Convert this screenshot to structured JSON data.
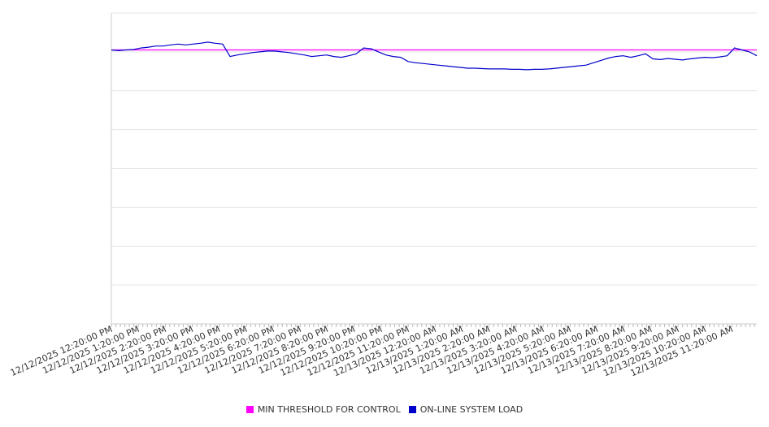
{
  "chart_data": {
    "type": "line",
    "title": "",
    "xlabel": "",
    "ylabel": "",
    "grid": true,
    "y_tick_labels_shown": false,
    "legend_position": "bottom",
    "x_tick_labels": [
      "12/12/2025 12:20:00 PM",
      "12/12/2025 1:20:00 PM",
      "12/12/2025 2:20:00 PM",
      "12/12/2025 3:20:00 PM",
      "12/12/2025 4:20:00 PM",
      "12/12/2025 5:20:00 PM",
      "12/12/2025 6:20:00 PM",
      "12/12/2025 7:20:00 PM",
      "12/12/2025 8:20:00 PM",
      "12/12/2025 9:20:00 PM",
      "12/12/2025 10:20:00 PM",
      "12/12/2025 11:20:00 PM",
      "12/13/2025 12:20:00 AM",
      "12/13/2025 1:20:00 AM",
      "12/13/2025 2:20:00 AM",
      "12/13/2025 3:20:00 AM",
      "12/13/2025 4:20:00 AM",
      "12/13/2025 5:20:00 AM",
      "12/13/2025 6:20:00 AM",
      "12/13/2025 7:20:00 AM",
      "12/13/2025 8:20:00 AM",
      "12/13/2025 9:20:00 AM",
      "12/13/2025 10:20:00 AM",
      "12/13/2025 11:20:00 AM"
    ],
    "x_start": "12/12/2025 12:20:00 PM",
    "x_end": "12/13/2025 12:15:00 PM",
    "sample_interval_minutes": 10,
    "ylim": [
      0,
      8
    ],
    "series": [
      {
        "name": "MIN THRESHOLD FOR CONTROL",
        "color": "#ff00ff",
        "values": [
          7.05,
          7.05
        ]
      },
      {
        "name": "ON-LINE SYSTEM LOAD",
        "color": "#0000cc",
        "values": [
          7.05,
          7.03,
          7.05,
          7.06,
          7.1,
          7.12,
          7.15,
          7.15,
          7.18,
          7.2,
          7.18,
          7.2,
          7.22,
          7.25,
          7.22,
          7.2,
          6.88,
          6.92,
          6.95,
          6.98,
          7.0,
          7.02,
          7.02,
          7.0,
          6.98,
          6.95,
          6.92,
          6.88,
          6.9,
          6.92,
          6.88,
          6.86,
          6.9,
          6.95,
          7.1,
          7.08,
          7.0,
          6.92,
          6.88,
          6.86,
          6.75,
          6.72,
          6.7,
          6.68,
          6.66,
          6.64,
          6.62,
          6.6,
          6.58,
          6.58,
          6.57,
          6.56,
          6.56,
          6.56,
          6.55,
          6.55,
          6.54,
          6.55,
          6.55,
          6.56,
          6.58,
          6.6,
          6.62,
          6.64,
          6.66,
          6.72,
          6.78,
          6.84,
          6.88,
          6.9,
          6.86,
          6.9,
          6.95,
          6.82,
          6.8,
          6.83,
          6.81,
          6.79,
          6.82,
          6.84,
          6.86,
          6.85,
          6.87,
          6.9,
          7.1,
          7.05,
          7.0,
          6.9
        ]
      }
    ]
  },
  "legend": {
    "items": [
      {
        "label": "MIN THRESHOLD FOR CONTROL",
        "color": "#ff00ff"
      },
      {
        "label": "ON-LINE SYSTEM LOAD",
        "color": "#0000cc"
      }
    ]
  }
}
